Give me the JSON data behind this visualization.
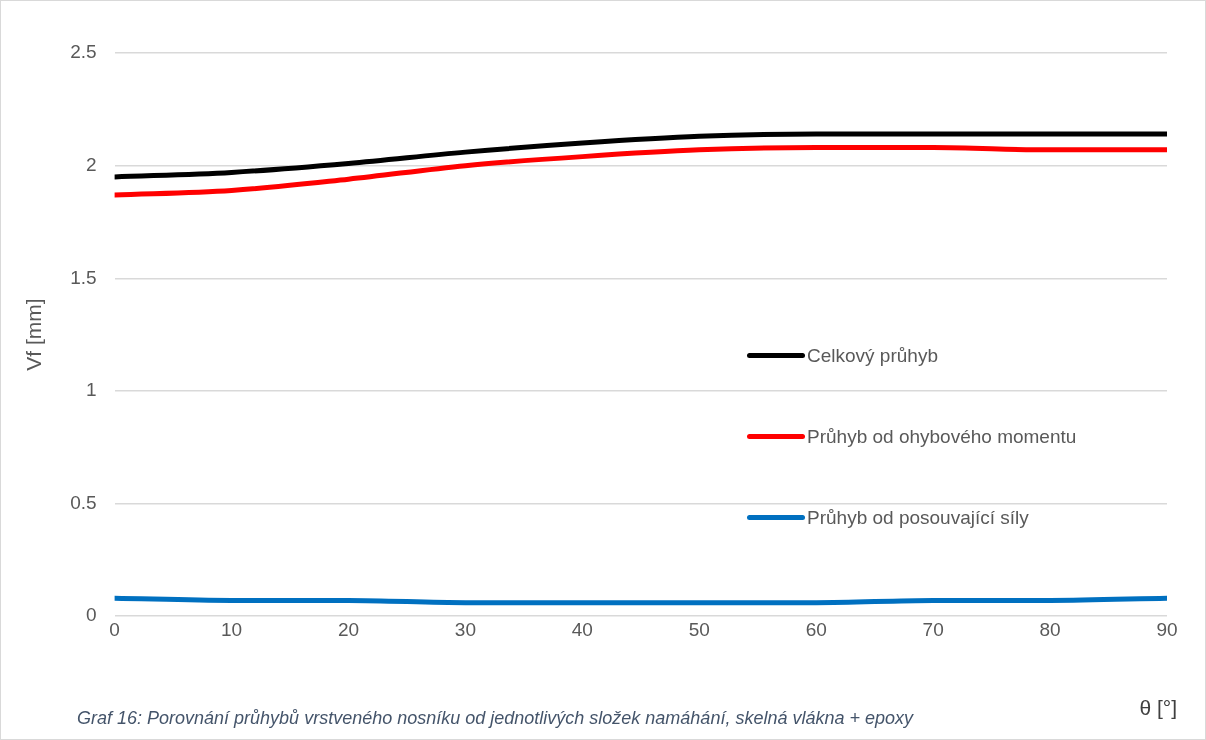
{
  "chart_data": {
    "type": "line",
    "xlabel": "θ [°]",
    "ylabel": "Vf [mm]",
    "x": [
      0,
      10,
      20,
      30,
      40,
      50,
      60,
      70,
      80,
      90
    ],
    "series": [
      {
        "name": "Celkový průhyb",
        "color": "#000000",
        "values": [
          1.95,
          1.97,
          2.01,
          2.06,
          2.1,
          2.13,
          2.14,
          2.14,
          2.14,
          2.14
        ]
      },
      {
        "name": "Průhyb od ohybového momentu",
        "color": "#ff0000",
        "values": [
          1.87,
          1.89,
          1.94,
          2.0,
          2.04,
          2.07,
          2.08,
          2.08,
          2.07,
          2.07
        ]
      },
      {
        "name": "Průhyb od posouvající síly",
        "color": "#0070c0",
        "values": [
          0.08,
          0.07,
          0.07,
          0.06,
          0.06,
          0.06,
          0.06,
          0.07,
          0.07,
          0.08
        ]
      }
    ],
    "xlim": [
      0,
      90
    ],
    "xticks": [
      0,
      10,
      20,
      30,
      40,
      50,
      60,
      70,
      80,
      90
    ],
    "ylim": [
      0,
      2.5
    ],
    "yticks": [
      0,
      0.5,
      1,
      1.5,
      2,
      2.5
    ],
    "grid": "y",
    "legend": "right",
    "marker": "none",
    "line_style": "solid",
    "annotations": [
      "Graf 16: Porovnání průhybů vrstveného nosníku od jednotlivých složek namáhání, skelná vlákna + epoxy"
    ]
  }
}
